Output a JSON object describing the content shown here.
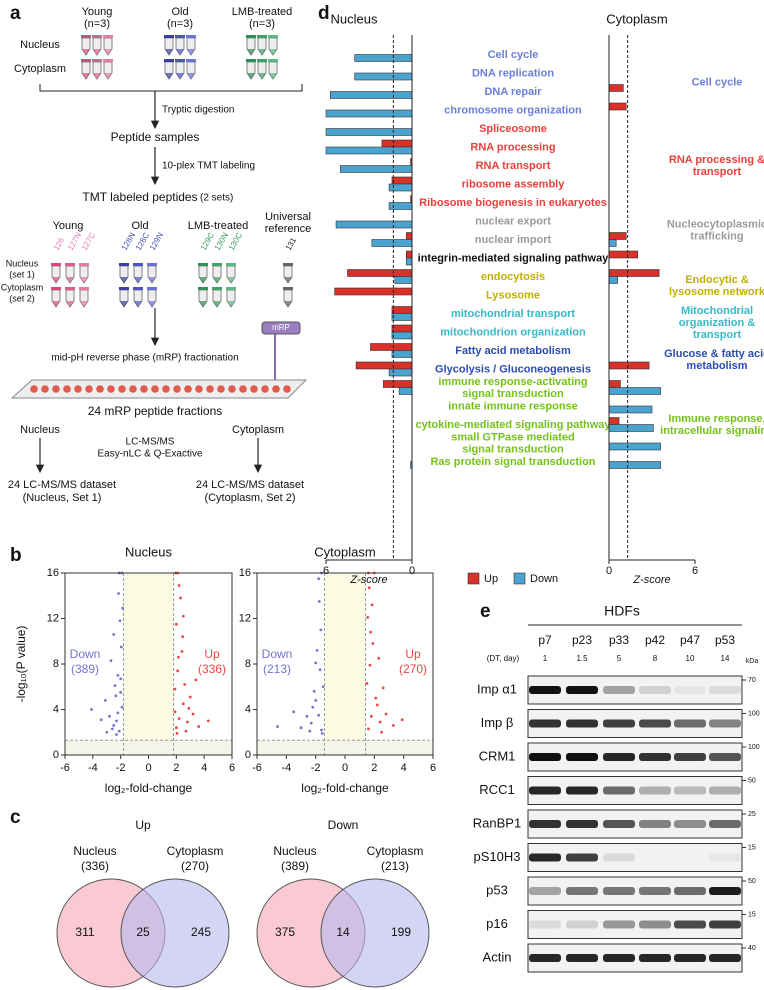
{
  "panel_labels": [
    "a",
    "b",
    "c",
    "d",
    "e"
  ],
  "workflow": {
    "groups": [
      {
        "name": "Young",
        "n": "(n=3)"
      },
      {
        "name": "Old",
        "n": "(n=3)"
      },
      {
        "name": "LMB-treated",
        "n": "(n=3)"
      }
    ],
    "fractions": [
      "Nucleus",
      "Cytoplasm"
    ],
    "steps": [
      "Tryptic digestion",
      "10-plex TMT labeling"
    ],
    "peptide_samples": "Peptide samples",
    "tmt_title": "TMT labeled peptides",
    "tmt_sets": "(2 sets)",
    "tmt_groups": [
      "Young",
      "Old",
      "LMB-treated"
    ],
    "reference": [
      "Universal",
      "reference"
    ],
    "channels": [
      "126",
      "127N",
      "127C",
      "128N",
      "128C",
      "129N",
      "129C",
      "130N",
      "130C",
      "131"
    ],
    "sets": [
      [
        "Nucleus",
        "(set 1)"
      ],
      [
        "Cytoplasm",
        "(set 2)"
      ]
    ],
    "fractionation": "mid-pH reverse phase (mRP) fractionation",
    "device": "mRP",
    "fractions_label": "24 mRP peptide fractions",
    "ms_branches": [
      "Nucleus",
      "Cytoplasm"
    ],
    "ms": [
      "LC-MS/MS",
      "Easy-nLC & Q-Exactive"
    ],
    "datasets": [
      [
        "24 LC-MS/MS dataset",
        "(Nucleus, Set 1)"
      ],
      [
        "24 LC-MS/MS dataset",
        "(Cytoplasm, Set 2)"
      ]
    ]
  },
  "chart_data": [
    {
      "type": "scatter",
      "title": "Nucleus",
      "xlabel": "log₂-fold-change",
      "ylabel": "-log₁₀(P value)",
      "xlim": [
        -6,
        6
      ],
      "xticks": [
        -6,
        -4,
        -2,
        0,
        2,
        4,
        6
      ],
      "ylim": [
        0,
        16
      ],
      "yticks": [
        0,
        4,
        8,
        12,
        16
      ],
      "thresholds": {
        "x": [
          -1.8,
          1.8
        ],
        "y": 1.3
      },
      "series": [
        {
          "name": "Down",
          "label": "(389)",
          "color": "#7474d2",
          "x": [
            -2.1,
            -2.3,
            -1.9,
            -2.5,
            -2.0,
            -2.8,
            -2.2,
            -3.1,
            -1.95,
            -2.4,
            -2.6,
            -2.05,
            -3.4,
            -2.15,
            -1.9,
            -2.7,
            -2.3,
            -4.1,
            -2.0,
            -2.5,
            -2.2,
            -3.0,
            -1.85,
            -2.35,
            -2.1
          ],
          "y": [
            2.1,
            3.0,
            4.2,
            2.6,
            5.5,
            3.4,
            7.0,
            4.8,
            9.5,
            6.1,
            2.3,
            11.8,
            3.1,
            14.2,
            16,
            8.3,
            1.8,
            4.0,
            6.7,
            10.6,
            3.7,
            2.0,
            12.9,
            5.2,
            16
          ]
        },
        {
          "name": "Up",
          "label": "(336)",
          "color": "#ee4545",
          "x": [
            2.0,
            2.2,
            2.5,
            1.9,
            2.8,
            2.1,
            3.2,
            2.4,
            2.0,
            2.6,
            3.6,
            2.3,
            1.95,
            2.9,
            2.15,
            4.3,
            2.45,
            2.05,
            3.0,
            2.7,
            2.2,
            1.9,
            3.4,
            2.5,
            2.1
          ],
          "y": [
            2.4,
            3.2,
            4.5,
            5.8,
            2.9,
            7.4,
            3.6,
            9.1,
            11.5,
            6.2,
            2.5,
            13.8,
            16,
            4.1,
            8.6,
            3.0,
            10.4,
            1.9,
            5.1,
            2.1,
            14.9,
            3.8,
            6.6,
            12.2,
            16
          ]
        }
      ]
    },
    {
      "type": "scatter",
      "title": "Cytoplasm",
      "xlabel": "log₂-fold-change",
      "xlim": [
        -6,
        6
      ],
      "xticks": [
        -6,
        -4,
        -2,
        0,
        2,
        4,
        6
      ],
      "ylim": [
        0,
        16
      ],
      "yticks": [
        0,
        4,
        8,
        12,
        16
      ],
      "thresholds": {
        "x": [
          -1.4,
          1.4
        ],
        "y": 1.3
      },
      "series": [
        {
          "name": "Down",
          "label": "(213)",
          "color": "#7474d2",
          "x": [
            -1.6,
            -1.8,
            -2.0,
            -1.5,
            -2.3,
            -1.7,
            -2.6,
            -1.9,
            -1.55,
            -2.1,
            -3.0,
            -1.65,
            -4.6,
            -2.2,
            -1.75,
            -3.5,
            -1.6,
            -2.0,
            -2.4,
            -1.8
          ],
          "y": [
            2.2,
            3.5,
            4.8,
            6.0,
            2.8,
            7.5,
            3.4,
            9.2,
            1.9,
            5.6,
            2.4,
            11.0,
            2.5,
            4.2,
            13.5,
            3.8,
            16,
            8.1,
            2.1,
            15.5
          ]
        },
        {
          "name": "Up",
          "label": "(270)",
          "color": "#ee4545",
          "x": [
            1.6,
            1.8,
            2.1,
            1.5,
            2.4,
            1.7,
            2.8,
            1.9,
            1.55,
            2.2,
            3.3,
            1.65,
            2.0,
            2.6,
            1.75,
            3.9,
            2.3,
            1.6,
            2.5,
            1.85
          ],
          "y": [
            2.3,
            3.4,
            5.0,
            6.3,
            2.9,
            7.9,
            3.6,
            9.8,
            12.1,
            4.4,
            2.6,
            14.7,
            16,
            5.9,
            10.8,
            3.1,
            8.5,
            16,
            2.0,
            13.2
          ]
        }
      ]
    },
    {
      "type": "barh",
      "title": "Nucleus",
      "xlabel": "Z-score",
      "xlim": [
        6,
        0
      ],
      "xticks": [
        6,
        0
      ],
      "threshold": 1.3,
      "categories": [
        "Cell cycle",
        "DNA replication",
        "DNA repair",
        "chromosome organization",
        "Spliceosome",
        "RNA processing",
        "RNA transport",
        "ribosome assembly",
        "Ribosome biogenesis in eukaryotes",
        "nuclear export",
        "nuclear import",
        "integrin-mediated signaling pathway",
        "endocytosis",
        "Lysosome",
        "mitochondrial transport",
        "mitochondrion organization",
        "Fatty acid metabolism",
        "Glycolysis / Gluconeogenesis",
        [
          "immune response-activating",
          "signal transduction"
        ],
        "innate immune response",
        "cytokine-mediated signaling pathway",
        [
          "small GTPase mediated",
          "signal transduction"
        ],
        "Ras protein signal transduction"
      ],
      "category_colors": [
        "#6b7fd8",
        "#6b7fd8",
        "#6b7fd8",
        "#6b7fd8",
        "#e8413c",
        "#e8413c",
        "#e8413c",
        "#e8413c",
        "#e8413c",
        "#9a9a9a",
        "#9a9a9a",
        "#111111",
        "#c2b000",
        "#c2b000",
        "#36b8c8",
        "#36b8c8",
        "#2a4bb0",
        "#2a4bb0",
        "#74c21a",
        "#74c21a",
        "#74c21a",
        "#74c21a",
        "#74c21a"
      ],
      "series": [
        {
          "name": "Up",
          "color": "#d7312a",
          "values": [
            0,
            0,
            0,
            0,
            0,
            2.1,
            0.1,
            1.4,
            0.1,
            0,
            0.4,
            0.4,
            4.5,
            5.4,
            1.4,
            1.4,
            2.9,
            3.9,
            2.0,
            0,
            0,
            0,
            0
          ]
        },
        {
          "name": "Down",
          "color": "#4ba3cf",
          "values": [
            4.0,
            4.0,
            5.7,
            6.0,
            6.0,
            6.0,
            5.0,
            1.6,
            1.6,
            5.3,
            2.8,
            0.4,
            1.2,
            0,
            1.4,
            1.4,
            1.4,
            1.6,
            0.9,
            0,
            0,
            0,
            0.1
          ]
        }
      ]
    },
    {
      "type": "barh",
      "title": "Cytoplasm",
      "xlabel": "Z-score",
      "xlim": [
        0,
        6
      ],
      "xticks": [
        0,
        6
      ],
      "threshold": 1.3,
      "groups": [
        {
          "lines": [
            "Cell cycle"
          ],
          "color": "#6b7fd8"
        },
        {
          "lines": [
            "RNA processing &",
            "transport"
          ],
          "color": "#e8413c"
        },
        {
          "lines": [
            "Nucleocytoplasmic",
            "trafficking"
          ],
          "color": "#9a9a9a"
        },
        {
          "lines": [
            "Endocytic &",
            "lysosome network"
          ],
          "color": "#c2b000"
        },
        {
          "lines": [
            "Mitochondrial",
            "organization &",
            "transport"
          ],
          "color": "#36b8c8"
        },
        {
          "lines": [
            "Glucose & fatty acid",
            "metabolism"
          ],
          "color": "#2a4bb0"
        },
        {
          "lines": [
            "Immune response,",
            "intracellular signaling"
          ],
          "color": "#74c21a"
        }
      ],
      "series": [
        {
          "name": "Up",
          "color": "#d7312a",
          "values": [
            0,
            0,
            1.0,
            1.2,
            0,
            0,
            0,
            0,
            0,
            0,
            1.2,
            2.0,
            3.5,
            0,
            0,
            0,
            0,
            2.8,
            0.8,
            0,
            0.7,
            0,
            0
          ]
        },
        {
          "name": "Down",
          "color": "#4ba3cf",
          "values": [
            0,
            0,
            0,
            0,
            0,
            0,
            0,
            0,
            0,
            0,
            0.5,
            0,
            0.6,
            0,
            0,
            0,
            0,
            0,
            3.6,
            3.0,
            3.1,
            3.6,
            3.6
          ]
        }
      ]
    }
  ],
  "venn": [
    {
      "title": "Up",
      "left": "Nucleus",
      "left_n": "(336)",
      "right": "Cytoplasm",
      "right_n": "(270)",
      "counts": [
        311,
        25,
        245
      ]
    },
    {
      "title": "Down",
      "left": "Nucleus",
      "left_n": "(389)",
      "right": "Cytoplasm",
      "right_n": "(213)",
      "counts": [
        375,
        14,
        199
      ]
    }
  ],
  "blot": {
    "title": "HDFs",
    "lanes": [
      "p7",
      "p23",
      "p33",
      "p42",
      "p47",
      "p53"
    ],
    "dt_label": "(DT, day)",
    "dt": [
      1,
      1.5,
      5,
      8,
      10,
      14
    ],
    "kda_label": "kDa",
    "rows": [
      {
        "name": "Imp α1",
        "kda": 70
      },
      {
        "name": "Imp β",
        "kda": 100
      },
      {
        "name": "CRM1",
        "kda": 100
      },
      {
        "name": "RCC1",
        "kda": 50
      },
      {
        "name": "RanBP1",
        "kda": 25
      },
      {
        "name": "pS10H3",
        "kda": 15
      },
      {
        "name": "p53",
        "kda": 50
      },
      {
        "name": "p16",
        "kda": 15
      },
      {
        "name": "Actin",
        "kda": 40
      }
    ]
  }
}
